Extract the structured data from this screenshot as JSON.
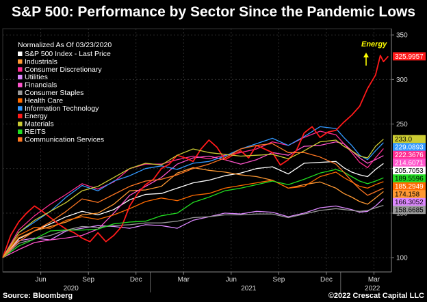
{
  "title": "S&P 500: Performance by Sector Since the Pandemic Lows",
  "footer": {
    "source": "Source: Bloomberg",
    "copyright": "©2022 Crescat Capital LLC"
  },
  "annotation": {
    "text": "Energy",
    "color": "#ffff00"
  },
  "chart_data": {
    "type": "line",
    "legend_title": "Normalized As Of 03/23/2020",
    "legend_position": "top-left",
    "grid": true,
    "ylim": [
      84,
      357
    ],
    "xlim": [
      0,
      24.5
    ],
    "y_ticks": [
      100,
      150,
      200,
      250,
      300,
      350
    ],
    "x_month_ticks": [
      {
        "label": "Jun",
        "x": 2.4
      },
      {
        "label": "Sep",
        "x": 5.4
      },
      {
        "label": "Dec",
        "x": 8.4
      },
      {
        "label": "Mar",
        "x": 11.4
      },
      {
        "label": "Jun",
        "x": 14.4
      },
      {
        "label": "Sep",
        "x": 17.4
      },
      {
        "label": "Dec",
        "x": 20.4
      },
      {
        "label": "Mar",
        "x": 23.4
      }
    ],
    "x_year_ticks": [
      {
        "label": "2020",
        "x": 4.3
      },
      {
        "label": "2021",
        "x": 15.5
      },
      {
        "label": "2022",
        "x": 23.3
      }
    ],
    "x_year_separators": [
      9.3,
      21.3
    ],
    "series": [
      {
        "name": "S&P 500 Index - Last Price",
        "color": "#ffffff",
        "last_label": "205.7053",
        "x": [
          0,
          1,
          2,
          3,
          4,
          5,
          6,
          7,
          8,
          9,
          10,
          11,
          12,
          13,
          14,
          15,
          16,
          17,
          18,
          19,
          20,
          21,
          21.5,
          22,
          22.5,
          23,
          23.5,
          24
        ],
        "y": [
          100,
          121,
          130,
          138,
          146,
          152,
          148,
          154,
          165,
          171,
          172,
          178,
          184,
          187,
          192,
          195,
          200,
          202,
          194,
          206,
          207,
          208,
          201,
          196,
          193,
          191,
          199,
          205.7
        ]
      },
      {
        "name": "Industrials",
        "color": "#ff9933",
        "last_label": "174.158",
        "x": [
          0,
          1,
          2,
          3,
          4,
          5,
          6,
          7,
          8,
          9,
          10,
          11,
          12,
          13,
          14,
          15,
          16,
          17,
          18,
          19,
          20,
          21,
          21.5,
          22,
          22.5,
          23,
          23.5,
          24
        ],
        "y": [
          100,
          122,
          130,
          135,
          140,
          148,
          150,
          160,
          175,
          176,
          180,
          195,
          201,
          198,
          196,
          193,
          191,
          187,
          178,
          182,
          185,
          178,
          172,
          168,
          163,
          160,
          167,
          174.2
        ]
      },
      {
        "name": "Consumer Discretionary",
        "color": "#ff2d92",
        "last_label": "222.3676",
        "x": [
          0,
          1,
          2,
          3,
          4,
          5,
          6,
          7,
          8,
          9,
          10,
          11,
          12,
          13,
          14,
          15,
          16,
          17,
          18,
          19,
          20,
          21,
          21.5,
          22,
          22.5,
          23,
          23.5,
          24
        ],
        "y": [
          100,
          131,
          147,
          160,
          171,
          183,
          177,
          185,
          200,
          205,
          205,
          210,
          214,
          211,
          215,
          218,
          222,
          230,
          226,
          235,
          242,
          238,
          228,
          218,
          207,
          201,
          212,
          222.4
        ]
      },
      {
        "name": "Utilities",
        "color": "#dd88ff",
        "last_label": "166.3052",
        "x": [
          0,
          1,
          2,
          3,
          4,
          5,
          6,
          7,
          8,
          9,
          10,
          11,
          12,
          13,
          14,
          15,
          16,
          17,
          18,
          19,
          20,
          21,
          21.5,
          22,
          22.5,
          23,
          23.5,
          24
        ],
        "y": [
          100,
          119,
          122,
          120,
          130,
          133,
          136,
          135,
          133,
          137,
          136,
          133,
          142,
          146,
          150,
          149,
          152,
          151,
          146,
          150,
          156,
          158,
          156,
          154,
          151,
          152,
          158,
          166.3
        ]
      },
      {
        "name": "Financials",
        "color": "#ff55cc",
        "last_label": "214.6071",
        "x": [
          0,
          1,
          2,
          3,
          4,
          5,
          6,
          7,
          8,
          9,
          10,
          11,
          12,
          13,
          14,
          15,
          16,
          17,
          18,
          19,
          20,
          21,
          21.5,
          22,
          22.5,
          23,
          23.5,
          24
        ],
        "y": [
          100,
          109,
          117,
          120,
          122,
          125,
          132,
          150,
          170,
          180,
          190,
          205,
          212,
          214,
          210,
          205,
          210,
          218,
          215,
          225,
          226,
          230,
          228,
          220,
          212,
          206,
          210,
          214.6
        ]
      },
      {
        "name": "Consumer Staples",
        "color": "#999999",
        "last_label": "158.6685",
        "x": [
          0,
          1,
          2,
          3,
          4,
          5,
          6,
          7,
          8,
          9,
          10,
          11,
          12,
          13,
          14,
          15,
          16,
          17,
          18,
          19,
          20,
          21,
          21.5,
          22,
          22.5,
          23,
          23.5,
          24
        ],
        "y": [
          100,
          116,
          121,
          125,
          131,
          135,
          134,
          136,
          137,
          139,
          139,
          141,
          145,
          146,
          148,
          148,
          149,
          149,
          145,
          149,
          153,
          155,
          154,
          153,
          152,
          153,
          156,
          158.7
        ]
      },
      {
        "name": "Health Care",
        "color": "#ff6a00",
        "last_label": "185.2949",
        "x": [
          0,
          1,
          2,
          3,
          4,
          5,
          6,
          7,
          8,
          9,
          10,
          11,
          12,
          13,
          14,
          15,
          16,
          17,
          18,
          19,
          20,
          21,
          21.5,
          22,
          22.5,
          23,
          23.5,
          24
        ],
        "y": [
          100,
          125,
          134,
          133,
          142,
          146,
          143,
          148,
          155,
          163,
          167,
          164,
          170,
          172,
          178,
          181,
          184,
          187,
          178,
          180,
          191,
          196,
          190,
          185,
          180,
          178,
          182,
          185.3
        ]
      },
      {
        "name": "Information Technology",
        "color": "#3399ff",
        "last_label": "229.0893",
        "x": [
          0,
          1,
          2,
          3,
          4,
          5,
          6,
          7,
          8,
          9,
          10,
          11,
          12,
          13,
          14,
          15,
          16,
          17,
          18,
          19,
          20,
          21,
          21.5,
          22,
          22.5,
          23,
          23.5,
          24
        ],
        "y": [
          100,
          128,
          140,
          152,
          168,
          181,
          175,
          186,
          192,
          200,
          203,
          199,
          206,
          208,
          214,
          222,
          228,
          234,
          226,
          236,
          247,
          245,
          235,
          226,
          215,
          210,
          220,
          229.1
        ]
      },
      {
        "name": "Energy",
        "color": "#ff1a1a",
        "last_label": "325.9957",
        "x": [
          0,
          0.5,
          1,
          1.5,
          2,
          2.5,
          3,
          3.5,
          4,
          4.5,
          5,
          5.5,
          6,
          6.5,
          7,
          7.5,
          8,
          8.5,
          9,
          9.5,
          10,
          10.5,
          11,
          11.5,
          12,
          12.5,
          13,
          13.5,
          14,
          14.5,
          15,
          15.5,
          16,
          16.5,
          17,
          17.5,
          18,
          18.5,
          19,
          19.5,
          20,
          20.5,
          21,
          21.5,
          22,
          22.5,
          23,
          23.5,
          23.8,
          24,
          24.3
        ],
        "y": [
          100,
          125,
          140,
          150,
          158,
          152,
          145,
          138,
          132,
          128,
          122,
          118,
          128,
          118,
          125,
          135,
          158,
          172,
          182,
          188,
          200,
          205,
          215,
          212,
          208,
          222,
          232,
          224,
          210,
          215,
          220,
          212,
          226,
          222,
          218,
          204,
          210,
          220,
          240,
          247,
          235,
          241,
          243,
          252,
          260,
          270,
          290,
          305,
          327,
          320,
          326
        ]
      },
      {
        "name": "Materials",
        "color": "#cccc33",
        "last_label": "233.0",
        "x": [
          0,
          1,
          2,
          3,
          4,
          5,
          6,
          7,
          8,
          9,
          10,
          11,
          12,
          13,
          14,
          15,
          16,
          17,
          18,
          19,
          20,
          21,
          21.5,
          22,
          22.5,
          23,
          23.5,
          24
        ],
        "y": [
          100,
          128,
          142,
          152,
          162,
          175,
          180,
          190,
          200,
          206,
          204,
          215,
          222,
          218,
          216,
          214,
          215,
          216,
          211,
          220,
          230,
          232,
          225,
          220,
          214,
          212,
          225,
          233
        ]
      },
      {
        "name": "REITS",
        "color": "#22dd22",
        "last_label": "189.5596",
        "x": [
          0,
          1,
          2,
          3,
          4,
          5,
          6,
          7,
          8,
          9,
          10,
          11,
          12,
          13,
          14,
          15,
          16,
          17,
          18,
          19,
          20,
          21,
          21.5,
          22,
          22.5,
          23,
          23.5,
          24
        ],
        "y": [
          100,
          113,
          121,
          130,
          131,
          131,
          132,
          138,
          140,
          141,
          147,
          150,
          162,
          168,
          175,
          178,
          182,
          186,
          182,
          188,
          195,
          199,
          196,
          191,
          186,
          183,
          186,
          189.6
        ]
      },
      {
        "name": "Communication Services",
        "color": "#ff7722",
        "last_label": "",
        "x": [
          0,
          1,
          2,
          3,
          4,
          5,
          6,
          7,
          8,
          9,
          10,
          11,
          12,
          13,
          14,
          15,
          16,
          17,
          18,
          19,
          20,
          21,
          21.5,
          22,
          22.5,
          23,
          23.5,
          24
        ],
        "y": [
          100,
          118,
          130,
          140,
          152,
          166,
          162,
          171,
          180,
          186,
          188,
          193,
          200,
          205,
          212,
          222,
          226,
          228,
          218,
          218,
          213,
          205,
          196,
          186,
          177,
          170,
          174,
          178
        ]
      }
    ]
  }
}
